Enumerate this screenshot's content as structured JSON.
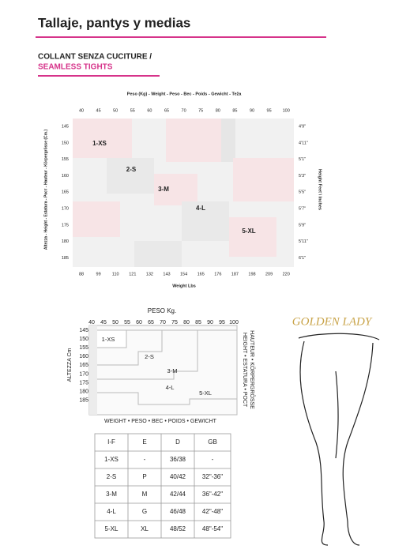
{
  "header": {
    "title": "Tallaje, pantys y medias"
  },
  "section": {
    "title_line1": "COLLANT SENZA CUCITURE /",
    "title_line2": "SEAMLESS TIGHTS"
  },
  "chart1": {
    "title": "Peso (Kg) - Weight - Peso - Bec - Poids - Gewicht - Teža",
    "weight_kg": [
      40,
      45,
      50,
      55,
      60,
      65,
      70,
      75,
      80,
      85,
      90,
      95,
      100
    ],
    "height_cm": [
      145,
      150,
      155,
      160,
      165,
      170,
      175,
      180,
      185
    ],
    "height_ft": [
      "4'9\"",
      "4'11\"",
      "5'1\"",
      "5'3\"",
      "5'5\"",
      "5'7\"",
      "5'9\"",
      "5'11\"",
      "6'1\""
    ],
    "weight_lbs": [
      88,
      99,
      110,
      121,
      132,
      143,
      154,
      165,
      176,
      187,
      198,
      209,
      220
    ],
    "x_label": "Weight Lbs",
    "y_label_left": "Altezza - Height - Estatura - Рост - Hauteur - Körpergrösse (Cm.)",
    "y_label_right": "Height Feet \\ Inches",
    "sizes": [
      "1-XS",
      "2-S",
      "3-M",
      "4-L",
      "5-XL"
    ]
  },
  "chart2": {
    "title": "PESO Kg.",
    "weight_kg": [
      40,
      45,
      50,
      55,
      60,
      65,
      70,
      75,
      80,
      85,
      90,
      95,
      100
    ],
    "height_cm": [
      145,
      150,
      155,
      160,
      165,
      170,
      175,
      180,
      185
    ],
    "y_label_left": "ALTEZZA Cm",
    "y_label_right_1": "HEIGHT • ESTATURA • POCT",
    "y_label_right_2": "HAUTEUR • KÖRPERGRÖSSE",
    "x_label": "WEIGHT • PESO • BEC • POIDS • GEWICHT",
    "sizes": [
      "1-XS",
      "2-S",
      "3-M",
      "4-L",
      "5-XL"
    ]
  },
  "table": {
    "header": [
      "I-F",
      "E",
      "D",
      "GB"
    ],
    "rows": [
      [
        "1-XS",
        "-",
        "36/38",
        "-"
      ],
      [
        "2-S",
        "P",
        "40/42",
        "32\"-36\""
      ],
      [
        "3-M",
        "M",
        "42/44",
        "36\"-42\""
      ],
      [
        "4-L",
        "G",
        "46/48",
        "42\"-48\""
      ],
      [
        "5-XL",
        "XL",
        "48/52",
        "48\"-54\""
      ]
    ]
  },
  "brand": "GOLDEN LADY"
}
